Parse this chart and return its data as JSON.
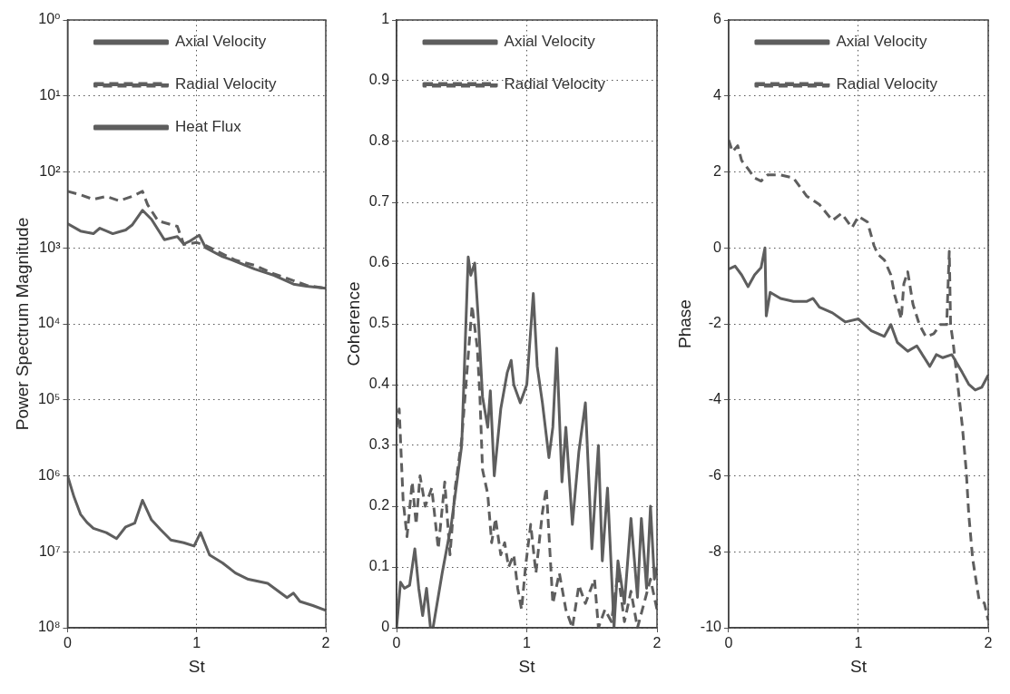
{
  "chart_data": [
    {
      "type": "line",
      "xlabel": "St",
      "ylabel": "Power Spectrum Magnitude",
      "xlim": [
        0,
        2
      ],
      "xticks": [
        0,
        1,
        2
      ],
      "ylim": [
        100000000,
        1
      ],
      "log": true,
      "grid": true,
      "legend": "top",
      "yticks": [
        {
          "value": 1,
          "label": "10⁰"
        },
        {
          "value": 10,
          "label": "10¹"
        },
        {
          "value": 100,
          "label": "10²"
        },
        {
          "value": 1000,
          "label": "10³"
        },
        {
          "value": 10000,
          "label": "10⁴"
        },
        {
          "value": 100000,
          "label": "10⁵"
        },
        {
          "value": 1000000,
          "label": "10⁶"
        },
        {
          "value": 10000000,
          "label": "10⁷"
        },
        {
          "value": 100000000,
          "label": "10⁸"
        }
      ],
      "series": [
        {
          "name": "Axial Velocity",
          "color": "#5e5e5e",
          "line_style": "solid",
          "x": [
            0,
            0.1,
            0.2,
            0.25,
            0.35,
            0.45,
            0.5,
            0.58,
            0.65,
            0.75,
            0.85,
            0.9,
            0.95,
            1.02,
            1.07,
            1.2,
            1.3,
            1.45,
            1.6,
            1.75,
            1.85,
            2.0
          ],
          "values": [
            480,
            600,
            650,
            550,
            650,
            580,
            500,
            320,
            420,
            780,
            710,
            890,
            810,
            680,
            1000,
            1300,
            1500,
            1900,
            2300,
            3000,
            3200,
            3400
          ]
        },
        {
          "name": "Radial Velocity",
          "color": "#5e5e5e",
          "line_style": "dashed",
          "x": [
            0,
            0.1,
            0.2,
            0.3,
            0.4,
            0.5,
            0.58,
            0.62,
            0.7,
            0.85,
            0.9,
            1.0,
            1.07,
            1.2,
            1.3,
            1.45,
            1.6,
            1.75,
            1.85,
            2.0
          ],
          "values": [
            180,
            200,
            230,
            210,
            240,
            210,
            180,
            270,
            440,
            520,
            900,
            850,
            930,
            1200,
            1450,
            1700,
            2200,
            2700,
            3100,
            3400
          ]
        },
        {
          "name": "Heat Flux",
          "color": "#5e5e5e",
          "line_style": "solid",
          "x": [
            0,
            0.05,
            0.1,
            0.15,
            0.2,
            0.3,
            0.38,
            0.45,
            0.52,
            0.58,
            0.65,
            0.72,
            0.8,
            0.9,
            0.98,
            1.03,
            1.1,
            1.2,
            1.3,
            1.4,
            1.55,
            1.7,
            1.75,
            1.8,
            1.9,
            2.0
          ],
          "values": [
            1000000,
            1900000,
            3200000,
            4100000,
            4900000,
            5600000,
            6700000,
            4700000,
            4200000,
            2100000,
            3800000,
            5100000,
            7000000,
            7600000,
            8400000,
            5600000,
            11000000,
            14000000,
            19000000,
            23000000,
            26000000,
            40000000,
            35000000,
            45000000,
            51000000,
            59000000
          ]
        }
      ]
    },
    {
      "type": "line",
      "xlabel": "St",
      "ylabel": "Coherence",
      "xlim": [
        0,
        2
      ],
      "xticks": [
        0,
        1,
        2
      ],
      "ylim": [
        0,
        1
      ],
      "yticks": [
        0,
        0.1,
        0.2,
        0.3,
        0.4,
        0.5,
        0.6,
        0.7,
        0.8,
        0.9,
        1
      ],
      "grid": true,
      "legend": "top",
      "series": [
        {
          "name": "Axial Velocity",
          "color": "#5e5e5e",
          "line_style": "solid",
          "x": [
            0,
            0.03,
            0.06,
            0.1,
            0.14,
            0.17,
            0.2,
            0.23,
            0.26,
            0.28,
            0.35,
            0.42,
            0.5,
            0.55,
            0.57,
            0.6,
            0.63,
            0.66,
            0.7,
            0.72,
            0.75,
            0.8,
            0.85,
            0.88,
            0.9,
            0.95,
            1.0,
            1.05,
            1.08,
            1.12,
            1.17,
            1.2,
            1.23,
            1.27,
            1.3,
            1.35,
            1.4,
            1.45,
            1.5,
            1.55,
            1.58,
            1.62,
            1.67,
            1.7,
            1.75,
            1.8,
            1.85,
            1.88,
            1.92,
            1.95,
            1.98,
            2.0
          ],
          "values": [
            0,
            0.075,
            0.065,
            0.07,
            0.13,
            0.065,
            0.02,
            0.065,
            0,
            0,
            0.09,
            0.17,
            0.3,
            0.61,
            0.58,
            0.6,
            0.5,
            0.38,
            0.33,
            0.39,
            0.25,
            0.36,
            0.42,
            0.44,
            0.4,
            0.37,
            0.4,
            0.55,
            0.43,
            0.37,
            0.28,
            0.33,
            0.46,
            0.24,
            0.33,
            0.17,
            0.29,
            0.37,
            0.13,
            0.3,
            0.11,
            0.23,
            0,
            0.11,
            0.04,
            0.18,
            0.05,
            0.18,
            0.065,
            0.2,
            0.08,
            0.1
          ]
        },
        {
          "name": "Radial Velocity",
          "color": "#5e5e5e",
          "line_style": "dashed",
          "x": [
            0,
            0.02,
            0.05,
            0.08,
            0.12,
            0.15,
            0.18,
            0.22,
            0.27,
            0.32,
            0.37,
            0.41,
            0.45,
            0.5,
            0.58,
            0.62,
            0.64,
            0.66,
            0.7,
            0.73,
            0.76,
            0.8,
            0.83,
            0.86,
            0.9,
            0.93,
            0.96,
            0.99,
            1.03,
            1.07,
            1.12,
            1.15,
            1.2,
            1.25,
            1.3,
            1.35,
            1.4,
            1.45,
            1.52,
            1.55,
            1.6,
            1.65,
            1.7,
            1.75,
            1.8,
            1.85,
            1.9,
            1.95,
            2.0
          ],
          "values": [
            0.33,
            0.36,
            0.21,
            0.15,
            0.24,
            0.17,
            0.25,
            0.2,
            0.23,
            0.13,
            0.24,
            0.12,
            0.23,
            0.31,
            0.53,
            0.46,
            0.38,
            0.26,
            0.22,
            0.14,
            0.18,
            0.12,
            0.14,
            0.1,
            0.12,
            0.065,
            0.03,
            0.1,
            0.17,
            0.09,
            0.19,
            0.23,
            0.04,
            0.09,
            0.03,
            0,
            0.07,
            0.04,
            0.08,
            0,
            0.03,
            0.01,
            0.09,
            0.01,
            0.06,
            0,
            0.04,
            0.08,
            0.03
          ]
        }
      ]
    },
    {
      "type": "line",
      "xlabel": "St",
      "ylabel": "Phase",
      "xlim": [
        0,
        2
      ],
      "xticks": [
        0,
        1,
        2
      ],
      "ylim": [
        -10,
        6
      ],
      "yticks": [
        -10,
        -8,
        -6,
        -4,
        -2,
        0,
        2,
        4,
        6
      ],
      "grid": true,
      "legend": "top",
      "series": [
        {
          "name": "Axial Velocity",
          "color": "#5e5e5e",
          "line_style": "solid",
          "x": [
            0,
            0.05,
            0.1,
            0.15,
            0.2,
            0.25,
            0.28,
            0.29,
            0.32,
            0.4,
            0.5,
            0.6,
            0.65,
            0.7,
            0.8,
            0.9,
            1.0,
            1.1,
            1.2,
            1.25,
            1.3,
            1.38,
            1.45,
            1.55,
            1.6,
            1.65,
            1.72,
            1.8,
            1.85,
            1.9,
            1.95,
            2.0
          ],
          "values": [
            -0.56,
            -0.48,
            -0.71,
            -1.02,
            -0.71,
            -0.52,
            0,
            -1.79,
            -1.17,
            -1.33,
            -1.41,
            -1.41,
            -1.33,
            -1.56,
            -1.71,
            -1.95,
            -1.87,
            -2.18,
            -2.33,
            -2.02,
            -2.49,
            -2.72,
            -2.58,
            -3.12,
            -2.81,
            -2.89,
            -2.81,
            -3.28,
            -3.59,
            -3.74,
            -3.67,
            -3.35
          ]
        },
        {
          "name": "Radial Velocity",
          "color": "#5e5e5e",
          "line_style": "dashed",
          "x": [
            0,
            0.03,
            0.07,
            0.1,
            0.15,
            0.2,
            0.25,
            0.3,
            0.4,
            0.5,
            0.6,
            0.7,
            0.8,
            0.87,
            0.95,
            1.0,
            1.07,
            1.12,
            1.15,
            1.2,
            1.25,
            1.28,
            1.33,
            1.35,
            1.38,
            1.42,
            1.47,
            1.52,
            1.58,
            1.63,
            1.68,
            1.7,
            1.71,
            1.73,
            1.77,
            1.8,
            1.83,
            1.85,
            1.88,
            1.93,
            1.97,
            2.0
          ],
          "values": [
            2.84,
            2.53,
            2.69,
            2.3,
            2.08,
            1.84,
            1.76,
            1.92,
            1.92,
            1.84,
            1.37,
            1.14,
            0.72,
            0.91,
            0.53,
            0.83,
            0.68,
            0.06,
            -0.17,
            -0.32,
            -0.71,
            -1.25,
            -1.87,
            -0.94,
            -0.63,
            -1.48,
            -2.02,
            -2.34,
            -2.26,
            -2.02,
            -2.02,
            -0.09,
            -2.02,
            -2.5,
            -3.74,
            -4.68,
            -5.84,
            -7.01,
            -8.18,
            -9.27,
            -9.35,
            -9.8
          ]
        }
      ]
    }
  ]
}
